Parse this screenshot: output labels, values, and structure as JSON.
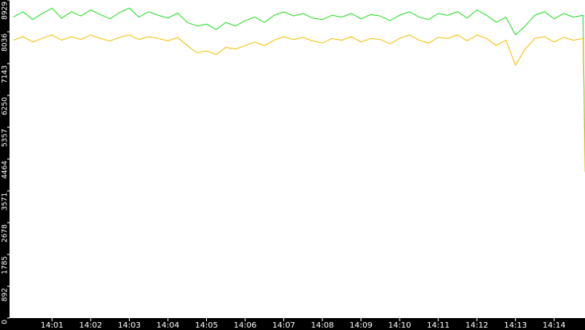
{
  "chart_data": {
    "type": "line",
    "x": [
      0,
      0.25,
      0.5,
      0.75,
      1,
      1.25,
      1.5,
      1.75,
      2,
      2.25,
      2.5,
      2.75,
      3,
      3.25,
      3.5,
      3.75,
      4,
      4.25,
      4.5,
      4.75,
      5,
      5.25,
      5.5,
      5.75,
      6,
      6.25,
      6.5,
      6.75,
      7,
      7.25,
      7.5,
      7.75,
      8,
      8.25,
      8.5,
      8.75,
      9,
      9.25,
      9.5,
      9.75,
      10,
      10.25,
      10.5,
      10.75,
      11,
      11.25,
      11.5,
      11.75,
      12,
      12.25,
      12.5,
      12.75,
      13,
      13.25,
      13.5,
      13.75,
      14,
      14.25,
      14.5,
      14.75,
      14.8
    ],
    "series": [
      {
        "color": "#22dd22",
        "values": [
          8450,
          8600,
          8380,
          8550,
          8700,
          8420,
          8600,
          8480,
          8650,
          8520,
          8400,
          8580,
          8700,
          8450,
          8600,
          8500,
          8420,
          8560,
          8300,
          8200,
          8250,
          8100,
          8300,
          8200,
          8350,
          8450,
          8300,
          8500,
          8600,
          8480,
          8550,
          8420,
          8380,
          8500,
          8450,
          8550,
          8400,
          8520,
          8480,
          8350,
          8500,
          8600,
          8450,
          8380,
          8550,
          8500,
          8600,
          8420,
          8650,
          8500,
          8300,
          8450,
          7950,
          8200,
          8500,
          8600,
          8400,
          8550,
          8450,
          8500,
          4500
        ]
      },
      {
        "color": "#f0c000",
        "values": [
          7800,
          7900,
          7750,
          7850,
          7950,
          7800,
          7900,
          7820,
          7950,
          7850,
          7780,
          7880,
          7950,
          7820,
          7900,
          7850,
          7780,
          7880,
          7650,
          7450,
          7500,
          7400,
          7600,
          7550,
          7650,
          7750,
          7650,
          7800,
          7900,
          7820,
          7880,
          7780,
          7720,
          7850,
          7800,
          7900,
          7750,
          7850,
          7820,
          7700,
          7850,
          7950,
          7800,
          7720,
          7880,
          7850,
          7950,
          7780,
          7950,
          7850,
          7650,
          7800,
          7100,
          7550,
          7850,
          7900,
          7750,
          7880,
          7800,
          7850,
          4100
        ]
      }
    ],
    "xlim": [
      -0.1,
      14.8
    ],
    "xticks": [
      {
        "value": 1,
        "label": "14:01"
      },
      {
        "value": 2,
        "label": "14:02"
      },
      {
        "value": 3,
        "label": "14:03"
      },
      {
        "value": 4,
        "label": "14:04"
      },
      {
        "value": 5,
        "label": "14:05"
      },
      {
        "value": 6,
        "label": "14:06"
      },
      {
        "value": 7,
        "label": "14:07"
      },
      {
        "value": 8,
        "label": "14:08"
      },
      {
        "value": 9,
        "label": "14:09"
      },
      {
        "value": 10,
        "label": "14:10"
      },
      {
        "value": 11,
        "label": "14:11"
      },
      {
        "value": 12,
        "label": "14:12"
      },
      {
        "value": 13,
        "label": "14:13"
      },
      {
        "value": 14,
        "label": "14:14"
      }
    ],
    "ylim": [
      0,
      8929
    ],
    "yticks": [
      0,
      892,
      1785,
      2678,
      3571,
      4464,
      5357,
      6250,
      7143,
      8036,
      8929
    ]
  }
}
